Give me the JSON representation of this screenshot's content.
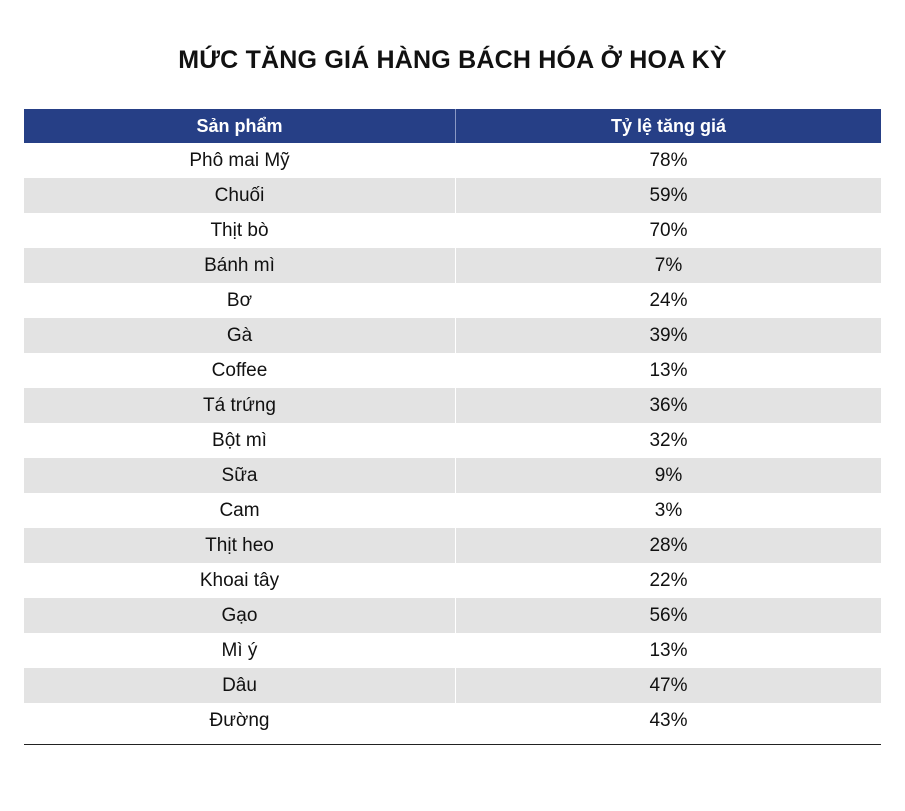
{
  "title": "MỨC TĂNG GIÁ HÀNG BÁCH HÓA Ở HOA KỲ",
  "table": {
    "headers": [
      "Sản phẩm",
      "Tỷ lệ tăng giá"
    ],
    "rows": [
      {
        "product": "Phô mai Mỹ",
        "rate": "78%"
      },
      {
        "product": "Chuối",
        "rate": "59%"
      },
      {
        "product": "Thịt bò",
        "rate": "70%"
      },
      {
        "product": "Bánh mì",
        "rate": "7%"
      },
      {
        "product": "Bơ",
        "rate": "24%"
      },
      {
        "product": "Gà",
        "rate": "39%"
      },
      {
        "product": "Coffee",
        "rate": "13%"
      },
      {
        "product": "Tá trứng",
        "rate": "36%"
      },
      {
        "product": "Bột mì",
        "rate": "32%"
      },
      {
        "product": "Sữa",
        "rate": "9%"
      },
      {
        "product": "Cam",
        "rate": "3%"
      },
      {
        "product": "Thịt heo",
        "rate": "28%"
      },
      {
        "product": "Khoai tây",
        "rate": "22%"
      },
      {
        "product": "Gạo",
        "rate": "56%"
      },
      {
        "product": "Mì ý",
        "rate": "13%"
      },
      {
        "product": "Dâu",
        "rate": "47%"
      },
      {
        "product": "Đường",
        "rate": "43%"
      }
    ]
  },
  "colors": {
    "header_bg": "#263f86",
    "stripe_bg": "#e3e3e3"
  }
}
